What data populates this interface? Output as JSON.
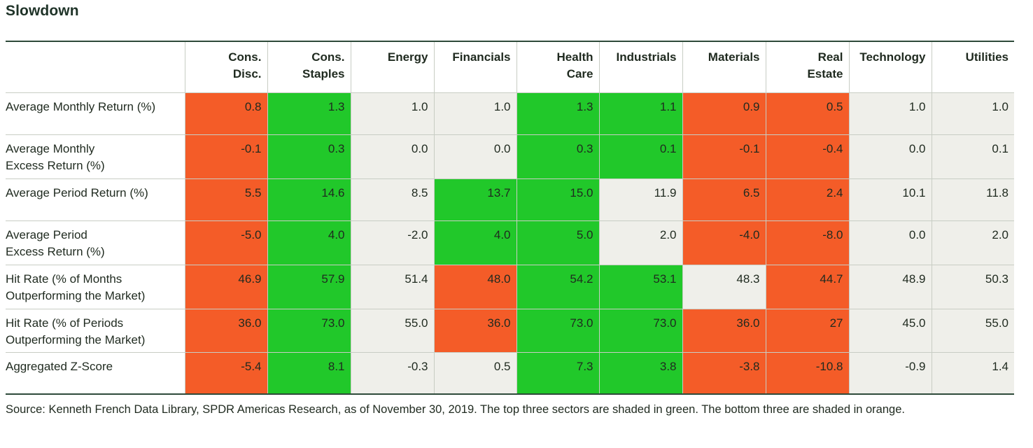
{
  "title": "Slowdown",
  "chart_data": {
    "type": "table",
    "columns": [
      [
        "Cons.",
        "Disc."
      ],
      [
        "Cons.",
        "Staples"
      ],
      [
        "Energy"
      ],
      [
        "Financials"
      ],
      [
        "Health",
        "Care"
      ],
      [
        "Industrials"
      ],
      [
        "Materials"
      ],
      [
        "Real",
        "Estate"
      ],
      [
        "Technology"
      ],
      [
        "Utilities"
      ]
    ],
    "rows": [
      {
        "label": [
          "Average Monthly Return (%)"
        ],
        "values": [
          "0.8",
          "1.3",
          "1.0",
          "1.0",
          "1.3",
          "1.1",
          "0.9",
          "0.5",
          "1.0",
          "1.0"
        ],
        "shading": [
          "orange",
          "green",
          "neutral",
          "neutral",
          "green",
          "green",
          "orange",
          "orange",
          "neutral",
          "neutral"
        ]
      },
      {
        "label": [
          "Average Monthly",
          "Excess Return (%)"
        ],
        "values": [
          "-0.1",
          "0.3",
          "0.0",
          "0.0",
          "0.3",
          "0.1",
          "-0.1",
          "-0.4",
          "0.0",
          "0.1"
        ],
        "shading": [
          "orange",
          "green",
          "neutral",
          "neutral",
          "green",
          "green",
          "orange",
          "orange",
          "neutral",
          "neutral"
        ]
      },
      {
        "label": [
          "Average Period Return (%)"
        ],
        "values": [
          "5.5",
          "14.6",
          "8.5",
          "13.7",
          "15.0",
          "11.9",
          "6.5",
          "2.4",
          "10.1",
          "11.8"
        ],
        "shading": [
          "orange",
          "green",
          "neutral",
          "green",
          "green",
          "neutral",
          "orange",
          "orange",
          "neutral",
          "neutral"
        ]
      },
      {
        "label": [
          "Average Period",
          "Excess Return (%)"
        ],
        "values": [
          "-5.0",
          "4.0",
          "-2.0",
          "4.0",
          "5.0",
          "2.0",
          "-4.0",
          "-8.0",
          "0.0",
          "2.0"
        ],
        "shading": [
          "orange",
          "green",
          "neutral",
          "green",
          "green",
          "neutral",
          "orange",
          "orange",
          "neutral",
          "neutral"
        ]
      },
      {
        "label": [
          "Hit Rate (% of Months",
          "Outperforming the Market)"
        ],
        "values": [
          "46.9",
          "57.9",
          "51.4",
          "48.0",
          "54.2",
          "53.1",
          "48.3",
          "44.7",
          "48.9",
          "50.3"
        ],
        "shading": [
          "orange",
          "green",
          "neutral",
          "orange",
          "green",
          "green",
          "neutral",
          "orange",
          "neutral",
          "neutral"
        ]
      },
      {
        "label": [
          "Hit Rate (% of Periods",
          "Outperforming the Market)"
        ],
        "values": [
          "36.0",
          "73.0",
          "55.0",
          "36.0",
          "73.0",
          "73.0",
          "36.0",
          "27",
          "45.0",
          "55.0"
        ],
        "shading": [
          "orange",
          "green",
          "neutral",
          "orange",
          "green",
          "green",
          "orange",
          "orange",
          "neutral",
          "neutral"
        ]
      },
      {
        "label": [
          "Aggregated Z-Score"
        ],
        "values": [
          "-5.4",
          "8.1",
          "-0.3",
          "0.5",
          "7.3",
          "3.8",
          "-3.8",
          "-10.8",
          "-0.9",
          "1.4"
        ],
        "shading": [
          "orange",
          "green",
          "neutral",
          "neutral",
          "green",
          "green",
          "orange",
          "orange",
          "neutral",
          "neutral"
        ]
      }
    ],
    "colors": {
      "green": "#21c82a",
      "orange": "#f45c28",
      "neutral": "#efefea"
    }
  },
  "footnote": "Source: Kenneth French Data Library, SPDR Americas Research, as of November 30, 2019. The top three sectors are shaded in green. The bottom three are shaded in orange."
}
